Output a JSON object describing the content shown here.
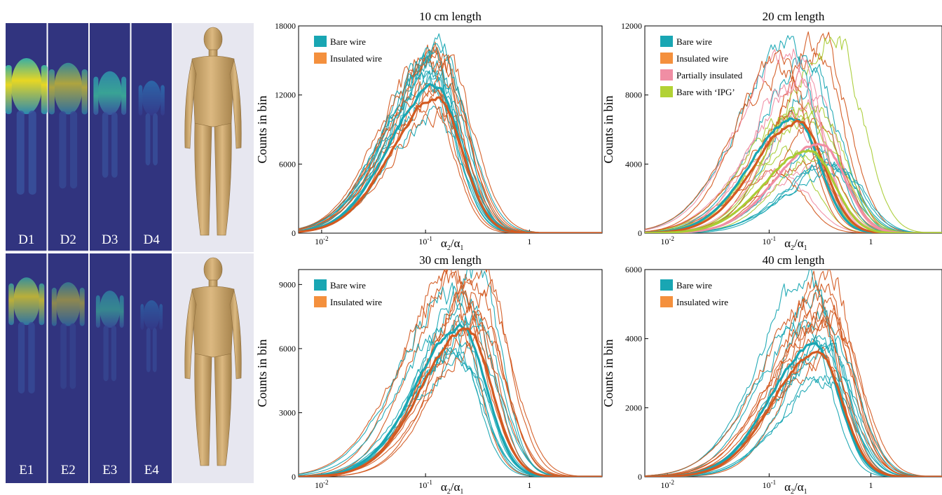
{
  "figure": {
    "map_labels_top": [
      "D1",
      "D2",
      "D3",
      "D4"
    ],
    "map_labels_bottom": [
      "E1",
      "E2",
      "E3",
      "E4"
    ],
    "colors": {
      "map_background": "#31347f",
      "map_high": "#f2e21c",
      "map_mid": "#2ba6b0",
      "skin": "#d7b079",
      "panel_background": "#e7e7f0"
    }
  },
  "chart_data": [
    {
      "type": "line",
      "title": "10 cm length",
      "ylabel": "Counts in bin",
      "xlabel_base": "α",
      "xlabel_num_sub": "2",
      "xlabel_den_sub": "1",
      "x_scale": "log",
      "xlim": [
        0.006,
        5
      ],
      "ylim": [
        0,
        18000
      ],
      "yticks": [
        0,
        6000,
        12000,
        18000
      ],
      "xticks": [
        {
          "value": 0.01,
          "base": "10",
          "exp": "-2"
        },
        {
          "value": 0.1,
          "base": "10",
          "exp": "-1"
        },
        {
          "value": 1,
          "base": "1",
          "exp": ""
        }
      ],
      "legend": [
        {
          "name": "Bare wire",
          "color": "#19a6b3"
        },
        {
          "name": "Insulated wire",
          "color": "#f4903d"
        }
      ],
      "series": [
        {
          "name": "Bare wire",
          "color": "#19a6b3",
          "role": "mean",
          "peak": {
            "x": 0.125,
            "y": 12800
          }
        },
        {
          "name": "Insulated wire",
          "color": "#d35a21",
          "role": "mean",
          "peak": {
            "x": 0.13,
            "y": 11800
          }
        }
      ],
      "individual_traces": {
        "count": 20,
        "peak_range": [
          10000,
          16000
        ],
        "peak_x_range": [
          0.1,
          0.16
        ]
      }
    },
    {
      "type": "line",
      "title": "20 cm length",
      "ylabel": "Counts in bin",
      "xlabel_base": "α",
      "xlabel_num_sub": "2",
      "xlabel_den_sub": "1",
      "x_scale": "log",
      "xlim": [
        0.006,
        5
      ],
      "ylim": [
        0,
        12000
      ],
      "yticks": [
        0,
        4000,
        8000,
        12000
      ],
      "xticks": [
        {
          "value": 0.01,
          "base": "10",
          "exp": "-2"
        },
        {
          "value": 0.1,
          "base": "10",
          "exp": "-1"
        },
        {
          "value": 1,
          "base": "1",
          "exp": ""
        }
      ],
      "legend": [
        {
          "name": "Bare wire",
          "color": "#19a6b3"
        },
        {
          "name": "Insulated wire",
          "color": "#f4903d"
        },
        {
          "name": " Partially insulated",
          "color": "#f08ea4"
        },
        {
          "name": "Bare with ‘IPG’",
          "color": "#b2d235"
        }
      ],
      "series": [
        {
          "name": "Bare wire",
          "color": "#19a6b3",
          "role": "mean",
          "peak": {
            "x": 0.18,
            "y": 6600
          }
        },
        {
          "name": "Insulated wire",
          "color": "#d35a21",
          "role": "mean",
          "peak": {
            "x": 0.2,
            "y": 6500
          }
        },
        {
          "name": "Partially insulated",
          "color": "#f08ea4",
          "role": "mean",
          "peak": {
            "x": 0.32,
            "y": 5200
          }
        },
        {
          "name": "Bare with ‘IPG’",
          "color": "#a9cc35",
          "role": "mean",
          "peak": {
            "x": 0.25,
            "y": 4800
          }
        }
      ],
      "individual_traces": {
        "count": 30,
        "peak_range": [
          3500,
          11700
        ],
        "peak_x_range": [
          0.12,
          0.55
        ]
      }
    },
    {
      "type": "line",
      "title": "30 cm length",
      "ylabel": "Counts in bin",
      "xlabel_base": "α",
      "xlabel_num_sub": "2",
      "xlabel_den_sub": "1",
      "x_scale": "log",
      "xlim": [
        0.006,
        5
      ],
      "ylim": [
        0,
        9700
      ],
      "yticks": [
        0,
        3000,
        6000,
        9000
      ],
      "xticks": [
        {
          "value": 0.01,
          "base": "10",
          "exp": "-2"
        },
        {
          "value": 0.1,
          "base": "10",
          "exp": "-1"
        },
        {
          "value": 1,
          "base": "1",
          "exp": ""
        }
      ],
      "legend": [
        {
          "name": "Bare wire",
          "color": "#19a6b3"
        },
        {
          "name": "Insulated wire",
          "color": "#f4903d"
        }
      ],
      "series": [
        {
          "name": "Bare wire",
          "color": "#19a6b3",
          "role": "mean",
          "peak": {
            "x": 0.22,
            "y": 7000
          }
        },
        {
          "name": "Insulated wire",
          "color": "#d35a21",
          "role": "mean",
          "peak": {
            "x": 0.25,
            "y": 6800
          }
        }
      ],
      "individual_traces": {
        "count": 20,
        "peak_range": [
          5500,
          9700
        ],
        "peak_x_range": [
          0.16,
          0.45
        ]
      }
    },
    {
      "type": "line",
      "title": "40 cm length",
      "ylabel": "Counts in bin",
      "xlabel_base": "α",
      "xlabel_num_sub": "2",
      "xlabel_den_sub": "1",
      "x_scale": "log",
      "xlim": [
        0.006,
        5
      ],
      "ylim": [
        0,
        6000
      ],
      "yticks": [
        0,
        2000,
        4000,
        6000
      ],
      "xticks": [
        {
          "value": 0.01,
          "base": "10",
          "exp": "-2"
        },
        {
          "value": 0.1,
          "base": "10",
          "exp": "-1"
        },
        {
          "value": 1,
          "base": "1",
          "exp": ""
        }
      ],
      "legend": [
        {
          "name": "Bare wire",
          "color": "#19a6b3"
        },
        {
          "name": "Insulated wire",
          "color": "#f4903d"
        }
      ],
      "series": [
        {
          "name": "Bare wire",
          "color": "#19a6b3",
          "role": "mean",
          "peak": {
            "x": 0.28,
            "y": 3800
          }
        },
        {
          "name": "Insulated wire",
          "color": "#d35a21",
          "role": "mean",
          "peak": {
            "x": 0.3,
            "y": 3600
          }
        }
      ],
      "individual_traces": {
        "count": 20,
        "peak_range": [
          2600,
          5800
        ],
        "peak_x_range": [
          0.2,
          0.45
        ]
      }
    }
  ]
}
